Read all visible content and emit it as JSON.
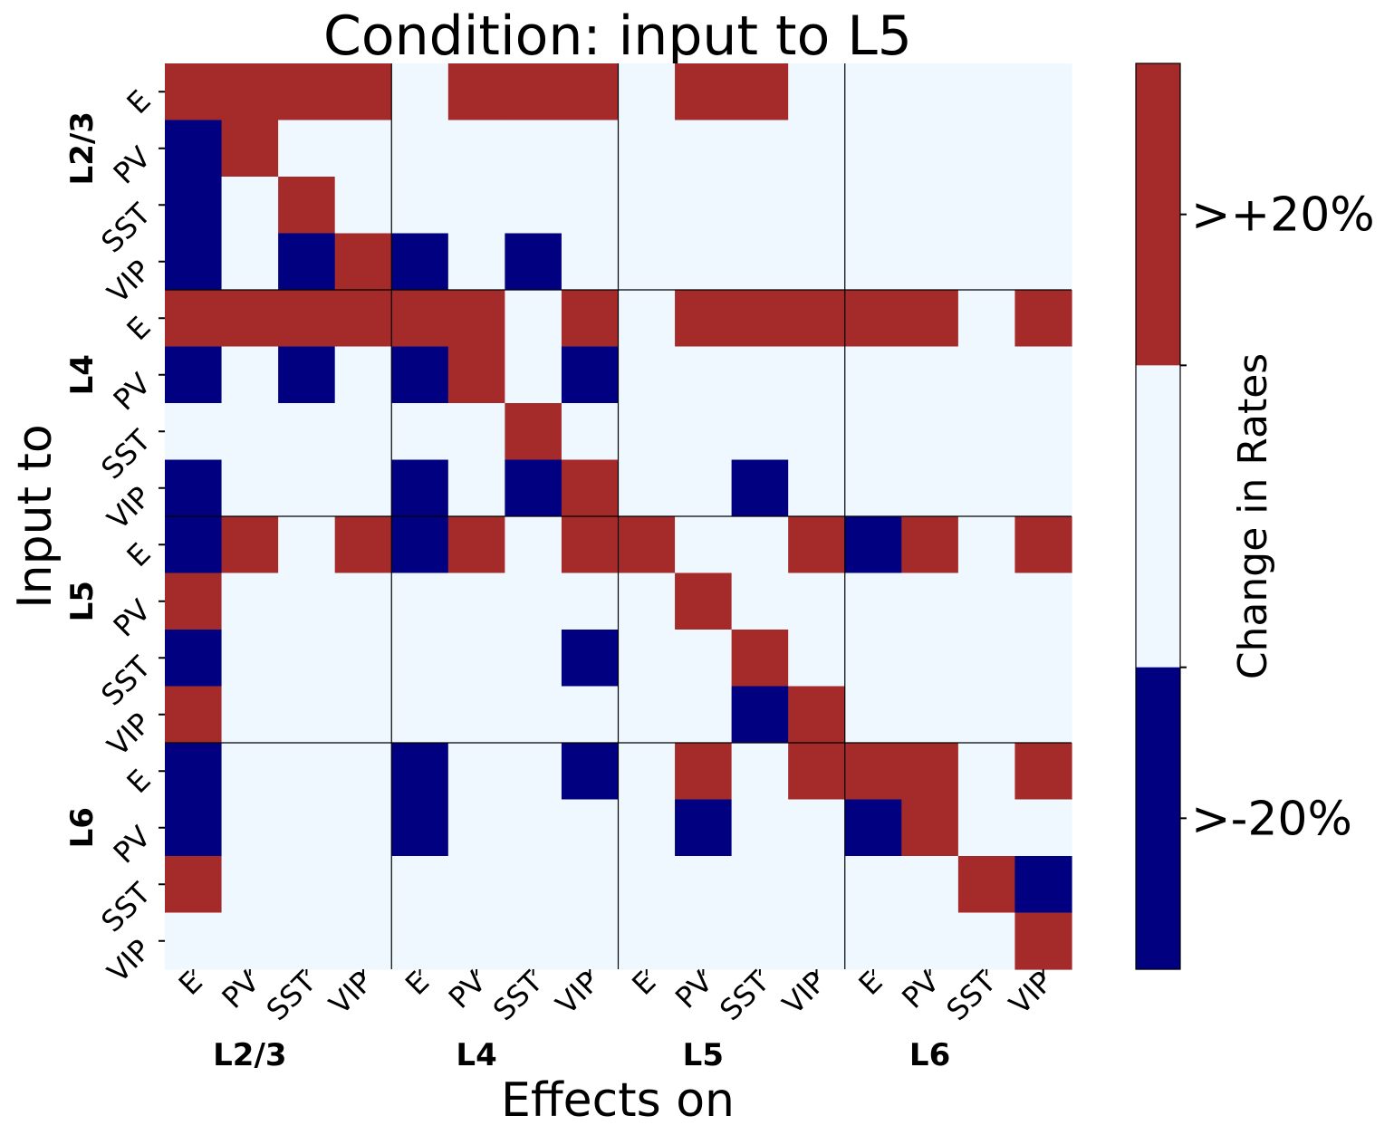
{
  "chart_data": {
    "type": "heatmap",
    "title": "Condition: input to L5",
    "xlabel": "Effects on",
    "ylabel": "Input to",
    "cell_types": [
      "E",
      "PV",
      "SST",
      "VIP"
    ],
    "layers": [
      "L2/3",
      "L4",
      "L5",
      "L6"
    ],
    "values": [
      [
        1,
        1,
        1,
        1,
        0,
        1,
        1,
        1,
        0,
        1,
        1,
        0,
        0,
        0,
        0,
        0
      ],
      [
        -1,
        1,
        0,
        0,
        0,
        0,
        0,
        0,
        0,
        0,
        0,
        0,
        0,
        0,
        0,
        0
      ],
      [
        -1,
        0,
        1,
        0,
        0,
        0,
        0,
        0,
        0,
        0,
        0,
        0,
        0,
        0,
        0,
        0
      ],
      [
        -1,
        0,
        -1,
        1,
        -1,
        0,
        -1,
        0,
        0,
        0,
        0,
        0,
        0,
        0,
        0,
        0
      ],
      [
        1,
        1,
        1,
        1,
        1,
        1,
        0,
        1,
        0,
        1,
        1,
        1,
        1,
        1,
        0,
        1
      ],
      [
        -1,
        0,
        -1,
        0,
        -1,
        1,
        0,
        -1,
        0,
        0,
        0,
        0,
        0,
        0,
        0,
        0
      ],
      [
        0,
        0,
        0,
        0,
        0,
        0,
        1,
        0,
        0,
        0,
        0,
        0,
        0,
        0,
        0,
        0
      ],
      [
        -1,
        0,
        0,
        0,
        -1,
        0,
        -1,
        1,
        0,
        0,
        -1,
        0,
        0,
        0,
        0,
        0
      ],
      [
        -1,
        1,
        0,
        1,
        -1,
        1,
        0,
        1,
        1,
        0,
        0,
        1,
        -1,
        1,
        0,
        1
      ],
      [
        1,
        0,
        0,
        0,
        0,
        0,
        0,
        0,
        0,
        1,
        0,
        0,
        0,
        0,
        0,
        0
      ],
      [
        -1,
        0,
        0,
        0,
        0,
        0,
        0,
        -1,
        0,
        0,
        1,
        0,
        0,
        0,
        0,
        0
      ],
      [
        1,
        0,
        0,
        0,
        0,
        0,
        0,
        0,
        0,
        0,
        -1,
        1,
        0,
        0,
        0,
        0
      ],
      [
        -1,
        0,
        0,
        0,
        -1,
        0,
        0,
        -1,
        0,
        1,
        0,
        1,
        1,
        1,
        0,
        1
      ],
      [
        -1,
        0,
        0,
        0,
        -1,
        0,
        0,
        0,
        0,
        -1,
        0,
        0,
        -1,
        1,
        0,
        0
      ],
      [
        1,
        0,
        0,
        0,
        0,
        0,
        0,
        0,
        0,
        0,
        0,
        0,
        0,
        0,
        1,
        -1
      ],
      [
        0,
        0,
        0,
        0,
        0,
        0,
        0,
        0,
        0,
        0,
        0,
        0,
        0,
        0,
        0,
        1
      ]
    ],
    "colors": {
      "-1": "#000080",
      "0": "#f0f8ff",
      "1": "#a52a2a"
    },
    "colorbar": {
      "label": "Change in Rates",
      "ticks": [
        {
          "label": ">+20%",
          "value": 1
        },
        {
          "label": ">-20%",
          "value": -1
        }
      ]
    }
  }
}
